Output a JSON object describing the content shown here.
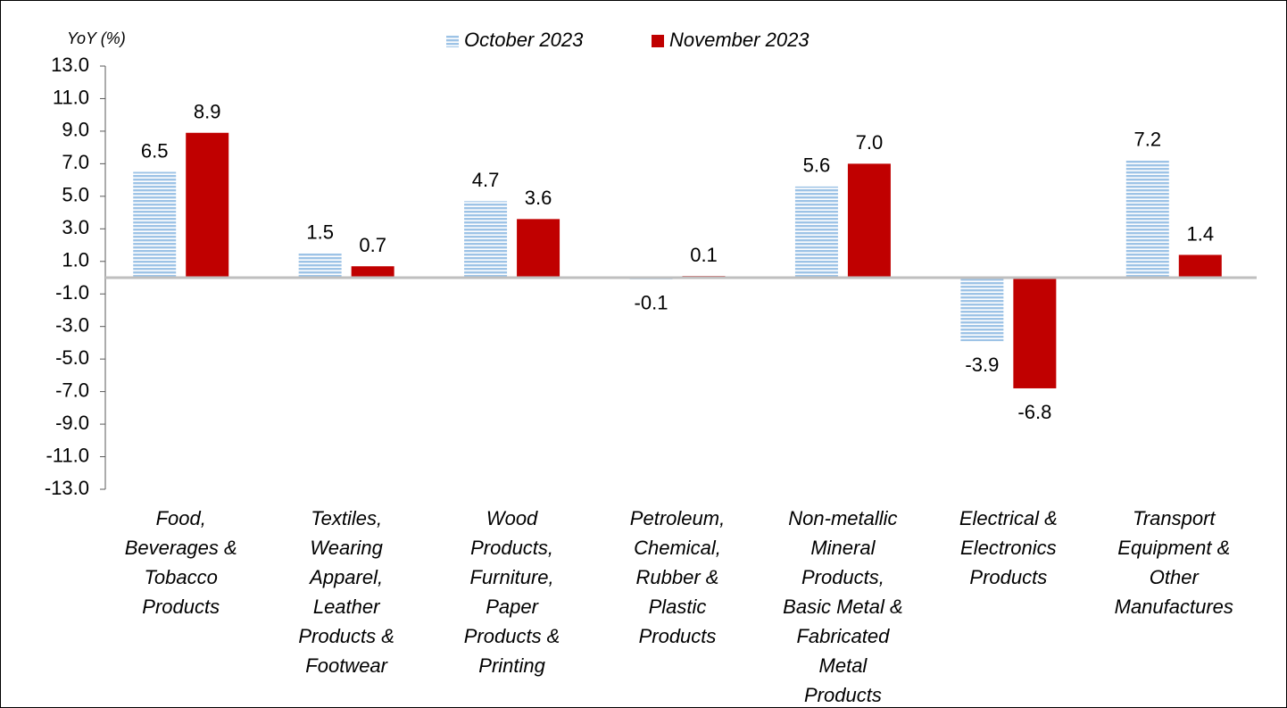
{
  "chart_data": {
    "type": "bar",
    "y_axis_label": "YoY (%)",
    "categories": [
      "Food, Beverages & Tobacco Products",
      "Textiles, Wearing Apparel, Leather Products & Footwear",
      "Wood Products, Furniture, Paper Products & Printing",
      "Petroleum, Chemical, Rubber & Plastic Products",
      "Non-metallic Mineral Products, Basic Metal & Fabricated Metal Products",
      "Electrical & Electronics Products",
      "Transport Equipment & Other Manufactures"
    ],
    "series": [
      {
        "name": "October 2023",
        "color": "#9dc3e6",
        "pattern": "horizontal-stripes",
        "values": [
          6.5,
          1.5,
          4.7,
          -0.1,
          5.6,
          -3.9,
          7.2
        ],
        "value_labels": [
          "6.5",
          "1.5",
          "4.7",
          "-0.1",
          "5.6",
          "-3.9",
          "7.2"
        ]
      },
      {
        "name": "November 2023",
        "color": "#c00000",
        "values": [
          8.9,
          0.7,
          3.6,
          0.1,
          7.0,
          -6.8,
          1.4
        ],
        "value_labels": [
          "8.9",
          "0.7",
          "3.6",
          "0.1",
          "7.0",
          "-6.8",
          "1.4"
        ]
      }
    ],
    "ylim": [
      -13,
      13
    ],
    "yticks": [
      {
        "value": 13,
        "label": "13.0"
      },
      {
        "value": 11,
        "label": "11.0"
      },
      {
        "value": 9,
        "label": "9.0"
      },
      {
        "value": 7,
        "label": "7.0"
      },
      {
        "value": 5,
        "label": "5.0"
      },
      {
        "value": 3,
        "label": "3.0"
      },
      {
        "value": 1,
        "label": "1.0"
      },
      {
        "value": -1,
        "label": "-1.0"
      },
      {
        "value": -3,
        "label": "-3.0"
      },
      {
        "value": -5,
        "label": "-5.0"
      },
      {
        "value": -7,
        "label": "-7.0"
      },
      {
        "value": -9,
        "label": "-9.0"
      },
      {
        "value": -11,
        "label": "-11.0"
      },
      {
        "value": -13,
        "label": "-13.0"
      }
    ],
    "legend": "top",
    "grid": false
  }
}
